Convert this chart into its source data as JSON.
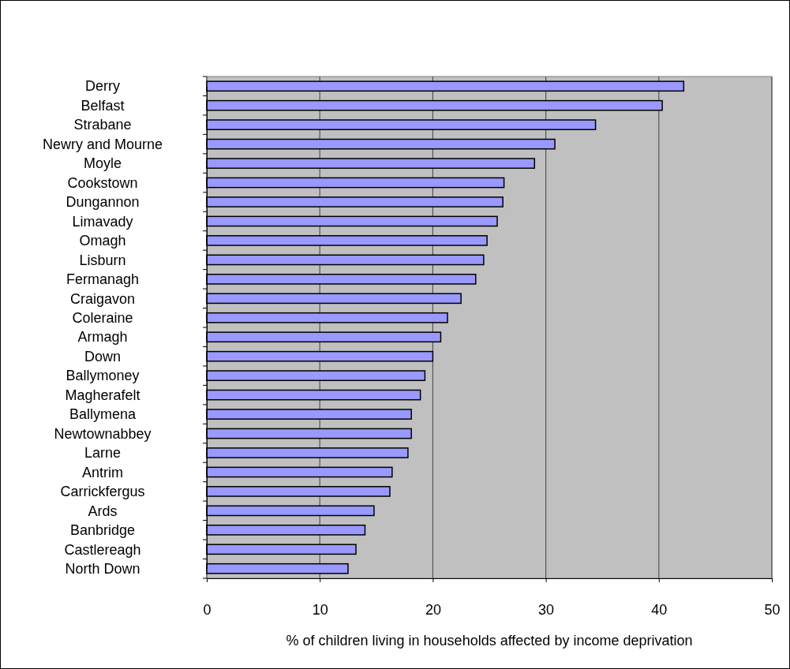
{
  "chart_data": {
    "type": "bar",
    "orientation": "horizontal",
    "xlabel": "% of children living in households affected by income deprivation",
    "categories": [
      "Derry",
      "Belfast",
      "Strabane",
      "Newry and Mourne",
      "Moyle",
      "Cookstown",
      "Dungannon",
      "Limavady",
      "Omagh",
      "Lisburn",
      "Fermanagh",
      "Craigavon",
      "Coleraine",
      "Armagh",
      "Down",
      "Ballymoney",
      "Magherafelt",
      "Ballymena",
      "Newtownabbey",
      "Larne",
      "Antrim",
      "Carrickfergus",
      "Ards",
      "Banbridge",
      "Castlereagh",
      "North Down"
    ],
    "values": [
      42.2,
      40.3,
      34.4,
      30.8,
      29.0,
      26.3,
      26.2,
      25.7,
      24.8,
      24.5,
      23.8,
      22.5,
      21.3,
      20.7,
      20.0,
      19.3,
      18.9,
      18.1,
      18.1,
      17.8,
      16.4,
      16.2,
      14.8,
      14.0,
      13.2,
      12.5
    ],
    "color": "#9999ff",
    "xlim": [
      0,
      50
    ],
    "xticks": [
      0,
      10,
      20,
      30,
      40,
      50
    ],
    "grid": "x"
  }
}
